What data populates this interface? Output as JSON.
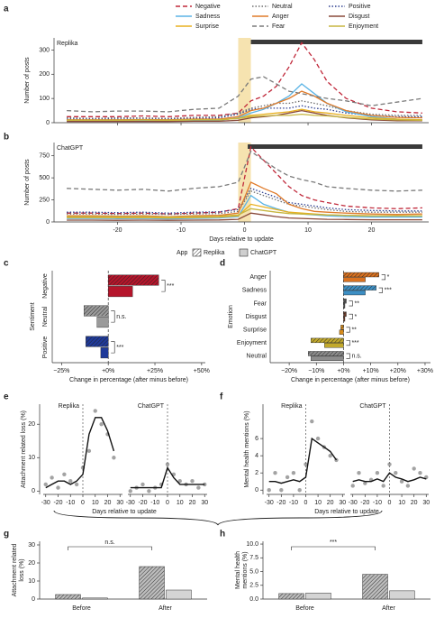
{
  "chart_data": [
    {
      "type": "line",
      "label": "a",
      "title": "Replika",
      "ylabel": "Number of posts",
      "x": [
        -28,
        -24,
        -20,
        -16,
        -12,
        -8,
        -4,
        -1,
        1,
        3,
        5,
        7,
        9,
        11,
        13,
        16,
        20,
        24,
        28
      ],
      "xlim": [
        -30,
        29
      ],
      "xticks": [
        -20,
        -10,
        0,
        10,
        20
      ],
      "show_xtick_labels": false,
      "ylim": [
        0,
        350
      ],
      "yticks": [
        0,
        100,
        200,
        300
      ],
      "shade_x": [
        -1,
        1
      ],
      "bar_x": [
        1,
        28
      ],
      "series": [
        {
          "name": "Negative",
          "color": "#c0283a",
          "dash": "dashed",
          "values": [
            25,
            25,
            25,
            28,
            25,
            30,
            30,
            40,
            90,
            110,
            150,
            230,
            330,
            260,
            170,
            100,
            60,
            45,
            40
          ]
        },
        {
          "name": "Neutral",
          "color": "#6e6e6e",
          "dash": "dotted",
          "values": [
            20,
            18,
            20,
            20,
            18,
            22,
            25,
            40,
            60,
            70,
            80,
            80,
            90,
            80,
            70,
            50,
            35,
            30,
            30
          ]
        },
        {
          "name": "Positive",
          "color": "#2e3f8f",
          "dash": "dotted",
          "values": [
            15,
            14,
            15,
            15,
            14,
            18,
            20,
            35,
            55,
            60,
            60,
            60,
            70,
            60,
            55,
            40,
            30,
            25,
            25
          ]
        },
        {
          "name": "Sadness",
          "color": "#5bb4e5",
          "dash": "solid",
          "values": [
            8,
            8,
            8,
            9,
            8,
            10,
            10,
            20,
            40,
            55,
            80,
            110,
            160,
            120,
            80,
            45,
            25,
            15,
            12
          ]
        },
        {
          "name": "Anger",
          "color": "#e07b2a",
          "dash": "solid",
          "values": [
            12,
            12,
            12,
            13,
            12,
            15,
            15,
            25,
            50,
            60,
            80,
            100,
            130,
            110,
            80,
            50,
            30,
            22,
            20
          ]
        },
        {
          "name": "Disgust",
          "color": "#8a4a3a",
          "dash": "solid",
          "values": [
            5,
            5,
            5,
            5,
            5,
            6,
            6,
            10,
            20,
            25,
            30,
            40,
            50,
            40,
            30,
            20,
            12,
            8,
            8
          ]
        },
        {
          "name": "Surprise",
          "color": "#e8b020",
          "dash": "solid",
          "values": [
            10,
            10,
            10,
            11,
            10,
            12,
            12,
            18,
            30,
            35,
            40,
            45,
            55,
            45,
            40,
            30,
            20,
            15,
            12
          ]
        },
        {
          "name": "Fear",
          "color": "#7a7a7a",
          "dash": "dashed",
          "values": [
            50,
            45,
            48,
            48,
            45,
            55,
            60,
            110,
            180,
            190,
            160,
            130,
            120,
            110,
            100,
            90,
            70,
            85,
            100
          ]
        },
        {
          "name": "Enjoyment",
          "color": "#c7b640",
          "dash": "solid",
          "values": [
            10,
            10,
            10,
            11,
            10,
            12,
            12,
            18,
            25,
            28,
            30,
            30,
            35,
            30,
            28,
            22,
            15,
            12,
            10
          ]
        }
      ]
    },
    {
      "type": "line",
      "label": "b",
      "title": "ChatGPT",
      "ylabel": "Number of posts",
      "xlabel": "Days relative to update",
      "x": [
        -28,
        -24,
        -20,
        -16,
        -12,
        -8,
        -4,
        -1,
        1,
        3,
        5,
        7,
        9,
        11,
        13,
        16,
        20,
        24,
        28
      ],
      "xlim": [
        -30,
        29
      ],
      "xticks": [
        -20,
        -10,
        0,
        10,
        20
      ],
      "show_xtick_labels": true,
      "ylim": [
        0,
        900
      ],
      "yticks": [
        0,
        250,
        500,
        750
      ],
      "shade_x": [
        -1,
        1
      ],
      "bar_x": [
        0.5,
        28
      ],
      "series": [
        {
          "color": "#c0283a",
          "dash": "dashed",
          "values": [
            100,
            100,
            95,
            100,
            90,
            100,
            110,
            150,
            850,
            700,
            550,
            400,
            300,
            250,
            220,
            180,
            160,
            150,
            160
          ]
        },
        {
          "color": "#6e6e6e",
          "dash": "dotted",
          "values": [
            90,
            90,
            85,
            90,
            85,
            90,
            95,
            120,
            350,
            300,
            250,
            200,
            180,
            160,
            140,
            120,
            110,
            110,
            110
          ]
        },
        {
          "color": "#2e3f8f",
          "dash": "dotted",
          "values": [
            110,
            110,
            105,
            110,
            100,
            110,
            115,
            140,
            380,
            330,
            280,
            220,
            200,
            180,
            160,
            140,
            130,
            125,
            125
          ]
        },
        {
          "color": "#5bb4e5",
          "dash": "solid",
          "values": [
            40,
            40,
            38,
            40,
            35,
            40,
            45,
            60,
            300,
            200,
            150,
            110,
            90,
            80,
            70,
            60,
            55,
            55,
            55
          ]
        },
        {
          "color": "#e07b2a",
          "dash": "solid",
          "values": [
            70,
            70,
            65,
            70,
            60,
            70,
            75,
            100,
            450,
            380,
            320,
            200,
            150,
            120,
            110,
            100,
            90,
            85,
            90
          ]
        },
        {
          "color": "#8a4a3a",
          "dash": "solid",
          "values": [
            20,
            20,
            18,
            20,
            18,
            20,
            22,
            30,
            100,
            80,
            60,
            45,
            40,
            35,
            30,
            28,
            25,
            25,
            25
          ]
        },
        {
          "color": "#e8b020",
          "dash": "solid",
          "values": [
            50,
            50,
            48,
            50,
            45,
            50,
            55,
            70,
            200,
            170,
            140,
            110,
            100,
            90,
            80,
            75,
            70,
            70,
            70
          ]
        },
        {
          "color": "#7a7a7a",
          "dash": "dashed",
          "values": [
            380,
            370,
            360,
            370,
            350,
            380,
            400,
            450,
            800,
            700,
            600,
            520,
            480,
            450,
            400,
            380,
            360,
            350,
            360
          ]
        },
        {
          "color": "#c7b640",
          "dash": "solid",
          "values": [
            60,
            60,
            58,
            60,
            55,
            60,
            65,
            80,
            150,
            130,
            110,
            95,
            90,
            85,
            80,
            75,
            70,
            70,
            70
          ]
        }
      ]
    },
    {
      "type": "barh",
      "label": "c",
      "ylabel": "Sentiment",
      "xlabel": "Change in percentage (after minus before)",
      "legend_title": "App",
      "rotate_categories": true,
      "categories": [
        "Negative",
        "Neutral",
        "Positive"
      ],
      "colors": [
        "#b5152b",
        "#9a9a9a",
        "#1f3a9a"
      ],
      "series": [
        {
          "name": "Replika",
          "hatch": true,
          "values": [
            27,
            -13,
            -12
          ]
        },
        {
          "name": "ChatGPT",
          "hatch": false,
          "values": [
            13,
            -6,
            -4
          ]
        }
      ],
      "sig": [
        "***",
        "n.s.",
        "***"
      ],
      "xlim": [
        -30,
        52
      ],
      "xticks": [
        {
          "value": -25,
          "label": "−25%"
        },
        {
          "value": 0,
          "label": "+0%"
        },
        {
          "value": 25,
          "label": "+25%"
        },
        {
          "value": 50,
          "label": "+50%"
        }
      ]
    },
    {
      "type": "barh",
      "label": "d",
      "ylabel": "Emotion",
      "xlabel": "Change in percentage (after minus before)",
      "rotate_categories": false,
      "categories": [
        "Anger",
        "Sadness",
        "Fear",
        "Disgust",
        "Surprise",
        "Enjoyment",
        "Neutral"
      ],
      "colors": [
        "#d9711f",
        "#3d8fc4",
        "#555555",
        "#6b3b2a",
        "#d98c1a",
        "#c2a92b",
        "#8c8c8c"
      ],
      "series": [
        {
          "hatch": true,
          "values": [
            13,
            12,
            1,
            1,
            -1,
            -12,
            -13
          ]
        },
        {
          "hatch": false,
          "values": [
            8,
            8,
            0.5,
            0.5,
            -1.5,
            -7,
            -12
          ]
        }
      ],
      "sig": [
        "*",
        "***",
        "**",
        "*",
        "**",
        "***",
        "n.s."
      ],
      "xlim": [
        -27,
        32
      ],
      "xticks": [
        {
          "value": -20,
          "label": "−20%"
        },
        {
          "value": -10,
          "label": "−10%"
        },
        {
          "value": 0,
          "label": "+0%"
        },
        {
          "value": 10,
          "label": "+10%"
        },
        {
          "value": 20,
          "label": "+20%"
        },
        {
          "value": 30,
          "label": "+30%"
        }
      ]
    },
    {
      "type": "scatter",
      "label": "e",
      "ylabel": "Attachment related loss (%)",
      "xlabel": "Days relative to update",
      "ylim": [
        -1,
        26
      ],
      "yticks": [
        0,
        10,
        20
      ],
      "xlim": [
        -32,
        32
      ],
      "xticks": [
        -30,
        -20,
        -10,
        0,
        10,
        20,
        30
      ],
      "facets": [
        {
          "name": "Replika",
          "x": [
            -30,
            -25,
            -20,
            -15,
            -10,
            -5,
            0,
            5,
            10,
            15,
            20,
            25,
            30
          ],
          "points": [
            2,
            4,
            1,
            5,
            3,
            2,
            7,
            12,
            24,
            20,
            17,
            10,
            null
          ],
          "fit": [
            1,
            2,
            3,
            3,
            2,
            3,
            5,
            17,
            22,
            22,
            18,
            12,
            null
          ]
        },
        {
          "name": "ChatGPT",
          "x": [
            -30,
            -25,
            -20,
            -15,
            -10,
            -5,
            0,
            5,
            10,
            15,
            20,
            25,
            30
          ],
          "points": [
            0,
            1,
            2,
            0,
            1,
            2,
            8,
            5,
            3,
            2,
            3,
            1,
            2
          ],
          "fit": [
            1,
            1,
            1,
            1,
            1,
            1,
            7,
            4,
            2,
            2,
            2,
            2,
            2
          ]
        }
      ]
    },
    {
      "type": "scatter",
      "label": "f",
      "ylabel": "Mental health mentions (%)",
      "xlabel": "Days relative to update",
      "ylim": [
        -0.5,
        10
      ],
      "yticks": [
        0,
        2,
        4,
        6
      ],
      "xlim": [
        -32,
        32
      ],
      "xticks": [
        -30,
        -20,
        -10,
        0,
        10,
        20,
        30
      ],
      "facets": [
        {
          "name": "Replika",
          "x": [
            -30,
            -25,
            -20,
            -15,
            -10,
            -5,
            0,
            5,
            10,
            15,
            20,
            25,
            30
          ],
          "points": [
            0,
            2,
            0,
            1.5,
            2,
            0,
            3,
            8,
            6,
            5,
            4,
            3.5,
            null
          ],
          "fit": [
            1,
            1,
            0.8,
            1,
            1.2,
            1,
            1.5,
            6,
            5.5,
            5,
            4.5,
            3.5,
            null
          ]
        },
        {
          "name": "ChatGPT",
          "x": [
            -30,
            -25,
            -20,
            -15,
            -10,
            -5,
            0,
            5,
            10,
            15,
            20,
            25,
            30
          ],
          "points": [
            0.5,
            2,
            0.8,
            1.2,
            2,
            0.5,
            3,
            2,
            1,
            0.5,
            2.5,
            2,
            1.5
          ],
          "fit": [
            1,
            1.2,
            1,
            1,
            1.3,
            1,
            2,
            1.5,
            1.3,
            1,
            1.2,
            1.5,
            1.3
          ]
        }
      ]
    },
    {
      "type": "bar",
      "label": "g",
      "ylabel": "Attachment related loss (%)",
      "categories": [
        "Before",
        "After"
      ],
      "series": [
        {
          "hatch": true,
          "color": "#bdbdbd",
          "values": [
            2.5,
            18
          ]
        },
        {
          "hatch": false,
          "color": "#d4d4d4",
          "values": [
            0.6,
            5
          ]
        }
      ],
      "ylim": [
        0,
        32
      ],
      "yticks": [
        0,
        10,
        20,
        30
      ],
      "annotation": "n.s."
    },
    {
      "type": "bar",
      "label": "h",
      "ylabel": "Mental health mentions (%)",
      "categories": [
        "Before",
        "After"
      ],
      "series": [
        {
          "hatch": true,
          "color": "#bdbdbd",
          "values": [
            1,
            4.5
          ]
        },
        {
          "hatch": false,
          "color": "#d4d4d4",
          "values": [
            1.1,
            1.5
          ]
        }
      ],
      "ylim": [
        0,
        10.5
      ],
      "yticks": [
        {
          "value": 0,
          "label": "0.0"
        },
        {
          "value": 2.5,
          "label": "2.5"
        },
        {
          "value": 5,
          "label": "5.0"
        },
        {
          "value": 7.5,
          "label": "7.5"
        },
        {
          "value": 10,
          "label": "10.0"
        }
      ],
      "annotation": "***"
    }
  ]
}
